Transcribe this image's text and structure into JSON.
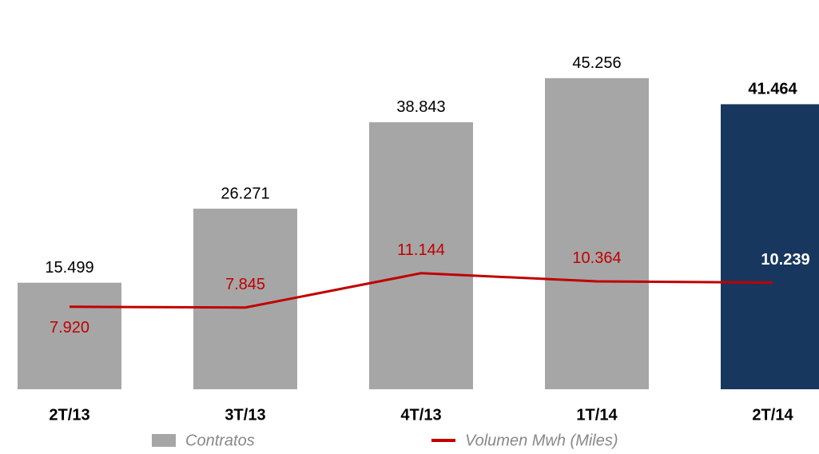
{
  "chart_data": {
    "type": "bar",
    "categories": [
      "2T/13",
      "3T/13",
      "4T/13",
      "1T/14",
      "2T/14"
    ],
    "series": [
      {
        "name": "Contratos",
        "type": "bar",
        "color": "#a6a6a6",
        "colors": [
          "#a6a6a6",
          "#a6a6a6",
          "#a6a6a6",
          "#a6a6a6",
          "#17375e"
        ],
        "values": [
          15499,
          26271,
          38843,
          45256,
          41464
        ],
        "value_labels": [
          "15.499",
          "26.271",
          "38.843",
          "45.256",
          "41.464"
        ]
      },
      {
        "name": "Volumen Mwh (Miles)",
        "type": "line",
        "axis": "y2",
        "color": "#c00000",
        "values": [
          7920,
          7845,
          11144,
          10364,
          10239
        ],
        "value_labels": [
          "7.920",
          "7.845",
          "11.144",
          "10.364",
          "10.239"
        ]
      }
    ],
    "ylim": [
      0,
      50000
    ],
    "y2lim": [
      0,
      33000
    ],
    "grid": false,
    "legend": "bottom"
  }
}
